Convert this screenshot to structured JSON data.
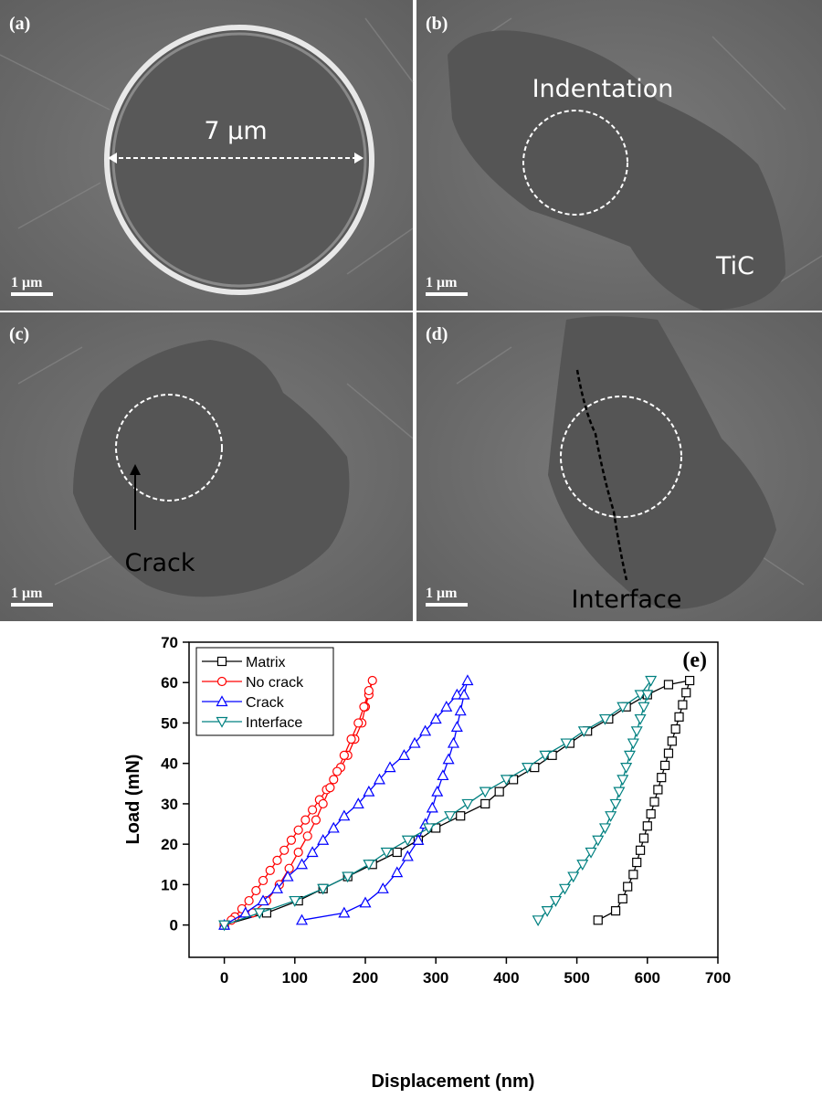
{
  "panels": [
    {
      "label": "(a)",
      "scale_bar": "1 μm",
      "annotations": [
        "7 μm"
      ]
    },
    {
      "label": "(b)",
      "scale_bar": "1 μm",
      "annotations": [
        "Indentation",
        "TiC"
      ]
    },
    {
      "label": "(c)",
      "scale_bar": "1 μm",
      "annotations": [
        "Crack"
      ]
    },
    {
      "label": "(d)",
      "scale_bar": "1 μm",
      "annotations": [
        "Interface"
      ]
    }
  ],
  "chart_data": {
    "type": "line",
    "panel_label": "(e)",
    "x_label": "Displacement (nm)",
    "y_label": "Load (mN)",
    "xlim": [
      -50,
      700
    ],
    "xticks": [
      0,
      100,
      200,
      300,
      400,
      500,
      600,
      700
    ],
    "ylim": [
      -8,
      70
    ],
    "yticks": [
      0,
      10,
      20,
      30,
      40,
      50,
      60,
      70
    ],
    "legend": "upper-left",
    "series": [
      {
        "name": "Matrix",
        "color": "#000000",
        "marker": "square",
        "x": [
          0,
          60,
          105,
          140,
          175,
          210,
          245,
          275,
          300,
          335,
          370,
          390,
          410,
          440,
          465,
          490,
          515,
          545,
          570,
          600,
          630,
          660,
          655,
          650,
          645,
          640,
          635,
          630,
          625,
          620,
          615,
          610,
          605,
          600,
          595,
          590,
          585,
          580,
          572,
          565,
          555,
          530
        ],
        "values": [
          0,
          3,
          6,
          9,
          12,
          15,
          18,
          21,
          24,
          27,
          30,
          33,
          36,
          39,
          42,
          45,
          48,
          51,
          54,
          57,
          59.5,
          60.5,
          57.5,
          54.5,
          51.5,
          48.5,
          45.5,
          42.5,
          39.5,
          36.5,
          33.5,
          30.5,
          27.5,
          24.5,
          21.5,
          18.5,
          15.5,
          12.5,
          9.5,
          6.5,
          3.5,
          1.2
        ]
      },
      {
        "name": "No crack",
        "color": "#ff0000",
        "marker": "circle",
        "x": [
          0,
          15,
          25,
          35,
          45,
          55,
          65,
          75,
          85,
          95,
          105,
          115,
          125,
          135,
          145,
          155,
          165,
          175,
          185,
          195,
          200,
          205,
          210,
          205,
          198,
          190,
          180,
          170,
          160,
          150,
          140,
          130,
          118,
          105,
          92,
          78,
          60,
          40,
          10
        ],
        "values": [
          0,
          2,
          4,
          6,
          8.5,
          11,
          13.5,
          16,
          18.5,
          21,
          23.5,
          26,
          28.5,
          31,
          33.5,
          36,
          39,
          42,
          46,
          50,
          54,
          57,
          60.5,
          58,
          54,
          50,
          46,
          42,
          38,
          34,
          30,
          26,
          22,
          18,
          14,
          10,
          6,
          3,
          1.2
        ]
      },
      {
        "name": "Crack",
        "color": "#0000ff",
        "marker": "triangle-up",
        "x": [
          0,
          30,
          55,
          75,
          90,
          110,
          125,
          140,
          155,
          170,
          190,
          205,
          220,
          235,
          255,
          270,
          285,
          300,
          315,
          330,
          345,
          340,
          335,
          330,
          325,
          318,
          310,
          302,
          295,
          285,
          275,
          260,
          245,
          225,
          200,
          170,
          110
        ],
        "values": [
          0,
          3,
          6,
          9,
          12,
          15,
          18,
          21,
          24,
          27,
          30,
          33,
          36,
          39,
          42,
          45,
          48,
          51,
          54,
          57,
          60.5,
          57,
          53,
          49,
          45,
          41,
          37,
          33,
          29,
          25,
          21,
          17,
          13,
          9,
          5.5,
          3,
          1.2
        ]
      },
      {
        "name": "Interface",
        "color": "#008080",
        "marker": "triangle-down",
        "x": [
          0,
          50,
          100,
          140,
          175,
          205,
          230,
          260,
          290,
          320,
          345,
          370,
          400,
          430,
          455,
          485,
          510,
          540,
          565,
          590,
          605,
          600,
          595,
          590,
          585,
          580,
          575,
          570,
          565,
          560,
          555,
          548,
          540,
          530,
          520,
          508,
          495,
          483,
          470,
          458,
          445
        ],
        "values": [
          0,
          3,
          6,
          9,
          12,
          15,
          18,
          21,
          24,
          27,
          30,
          33,
          36,
          39,
          42,
          45,
          48,
          51,
          54,
          57,
          60.5,
          57,
          54,
          51,
          48,
          45,
          42,
          39,
          36,
          33,
          30,
          27,
          24,
          21,
          18,
          15,
          12,
          9,
          6,
          3.5,
          1.2
        ]
      }
    ]
  }
}
